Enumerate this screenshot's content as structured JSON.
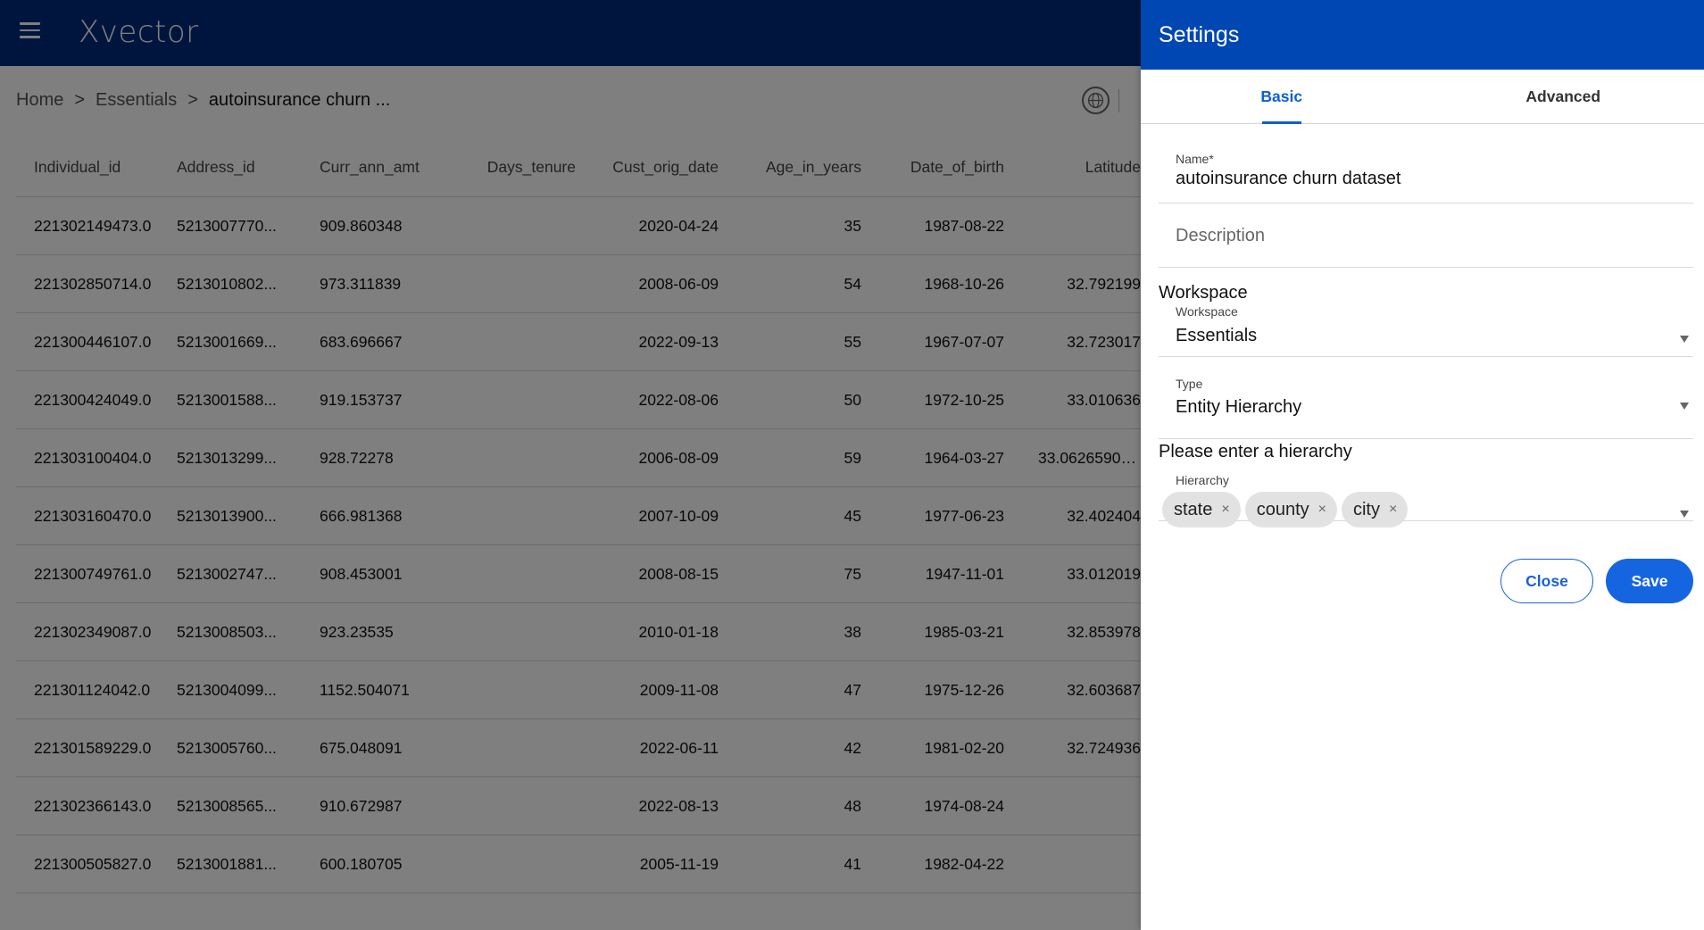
{
  "app": {
    "logo": "Xvector",
    "colors": {
      "topbar": "#002a7a",
      "drawer_header": "#0047b3",
      "accent": "#1565e0"
    }
  },
  "breadcrumb": {
    "home": "Home",
    "sep1": ">",
    "essentials": "Essentials",
    "sep2": ">",
    "current": "autoinsurance churn ..."
  },
  "table": {
    "columns": [
      "Individual_id",
      "Address_id",
      "Curr_ann_amt",
      "Days_tenure",
      "Cust_orig_date",
      "Age_in_years",
      "Date_of_birth",
      "Latitude"
    ],
    "rows": [
      [
        "221302149473.0",
        "5213007770...",
        "909.860348",
        "",
        "2020-04-24",
        "35",
        "1987-08-22",
        ""
      ],
      [
        "221302850714.0",
        "5213010802...",
        "973.311839",
        "",
        "2008-06-09",
        "54",
        "1968-10-26",
        "32.792199"
      ],
      [
        "221300446107.0",
        "5213001669...",
        "683.696667",
        "",
        "2022-09-13",
        "55",
        "1967-07-07",
        "32.723017"
      ],
      [
        "221300424049.0",
        "5213001588...",
        "919.153737",
        "",
        "2022-08-06",
        "50",
        "1972-10-25",
        "33.010636"
      ],
      [
        "221303100404.0",
        "5213013299...",
        "928.72278",
        "",
        "2006-08-09",
        "59",
        "1964-03-27",
        "33.06265900..."
      ],
      [
        "221303160470.0",
        "5213013900...",
        "666.981368",
        "",
        "2007-10-09",
        "45",
        "1977-06-23",
        "32.402404"
      ],
      [
        "221300749761.0",
        "5213002747...",
        "908.453001",
        "",
        "2008-08-15",
        "75",
        "1947-11-01",
        "33.012019"
      ],
      [
        "221302349087.0",
        "5213008503...",
        "923.23535",
        "",
        "2010-01-18",
        "38",
        "1985-03-21",
        "32.853978"
      ],
      [
        "221301124042.0",
        "5213004099...",
        "1152.504071",
        "",
        "2009-11-08",
        "47",
        "1975-12-26",
        "32.603687"
      ],
      [
        "221301589229.0",
        "5213005760...",
        "675.048091",
        "",
        "2022-06-11",
        "42",
        "1981-02-20",
        "32.724936"
      ],
      [
        "221302366143.0",
        "5213008565...",
        "910.672987",
        "",
        "2022-08-13",
        "48",
        "1974-08-24",
        ""
      ],
      [
        "221300505827.0",
        "5213001881...",
        "600.180705",
        "",
        "2005-11-19",
        "41",
        "1982-04-22",
        ""
      ]
    ]
  },
  "drawer": {
    "title": "Settings",
    "tabs": {
      "basic": "Basic",
      "advanced": "Advanced"
    },
    "name_label": "Name*",
    "name_value": "autoinsurance churn dataset",
    "description_placeholder": "Description",
    "workspace_section": "Workspace",
    "workspace_label": "Workspace",
    "workspace_value": "Essentials",
    "type_label": "Type",
    "type_value": "Entity Hierarchy",
    "hierarchy_hint": "Please enter a hierarchy",
    "hierarchy_label": "Hierarchy",
    "hierarchy_chips": [
      "state",
      "county",
      "city"
    ],
    "chip_remove": "×",
    "close_label": "Close",
    "save_label": "Save"
  }
}
